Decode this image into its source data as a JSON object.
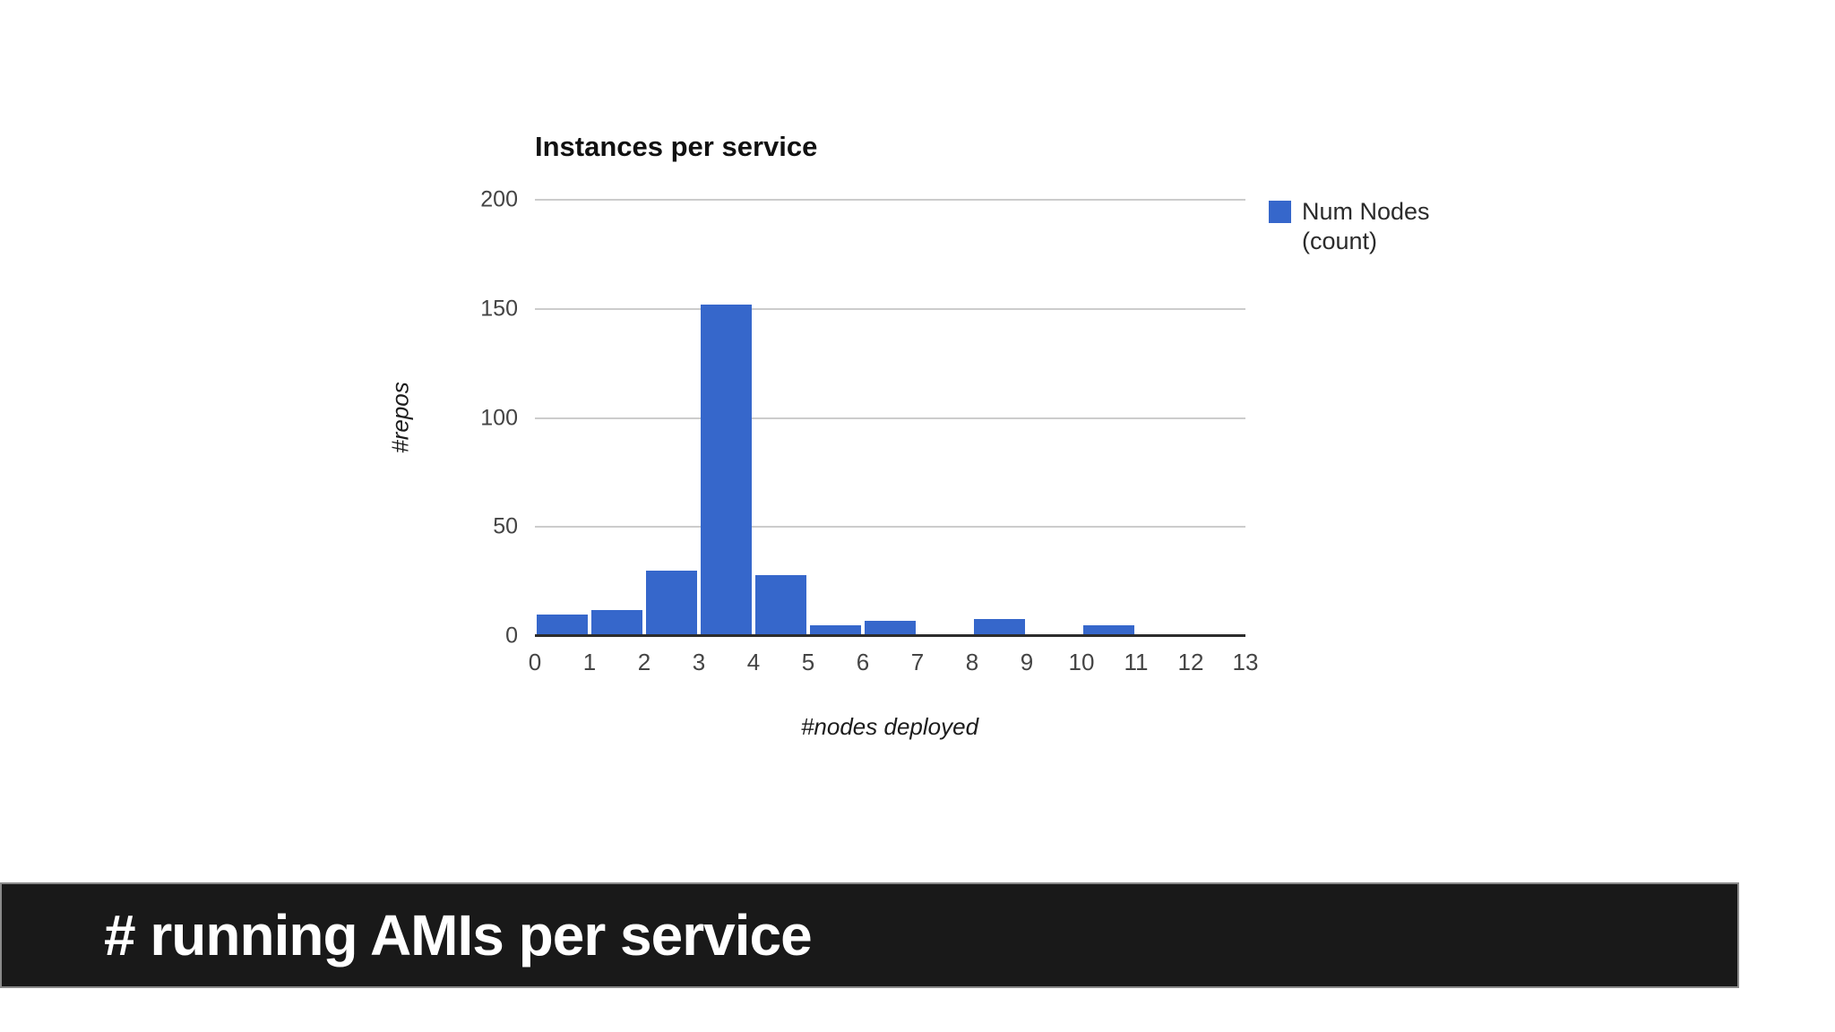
{
  "chart_data": {
    "type": "bar",
    "title": "Instances per service",
    "xlabel": "#nodes deployed",
    "ylabel": "#repos",
    "bin_edges": [
      0,
      1,
      2,
      3,
      4,
      5,
      6,
      7,
      8,
      9,
      10,
      11,
      12,
      13
    ],
    "values": [
      10,
      12,
      30,
      152,
      28,
      5,
      7,
      1,
      8,
      1,
      5,
      0,
      1
    ],
    "x_ticks": [
      "0",
      "1",
      "2",
      "3",
      "4",
      "5",
      "6",
      "7",
      "8",
      "9",
      "10",
      "11",
      "12",
      "13"
    ],
    "y_ticks": [
      0,
      50,
      100,
      150,
      200
    ],
    "ylim": [
      0,
      200
    ],
    "grid": true,
    "legend": {
      "position": "right",
      "lines": [
        "Num Nodes",
        "(count)"
      ],
      "marker_color": "#3667cb"
    },
    "colors": {
      "series": "#3667cb",
      "gridline": "#cccccc",
      "axis_line": "#2d2d2d",
      "tick_label": "#444444",
      "title": "#111111",
      "axis_title": "#1c1c1c",
      "legend_text": "#2b2b2b"
    }
  },
  "banner": {
    "text": "# running AMIs per service",
    "background": "#191919",
    "text_color": "#ffffff"
  }
}
